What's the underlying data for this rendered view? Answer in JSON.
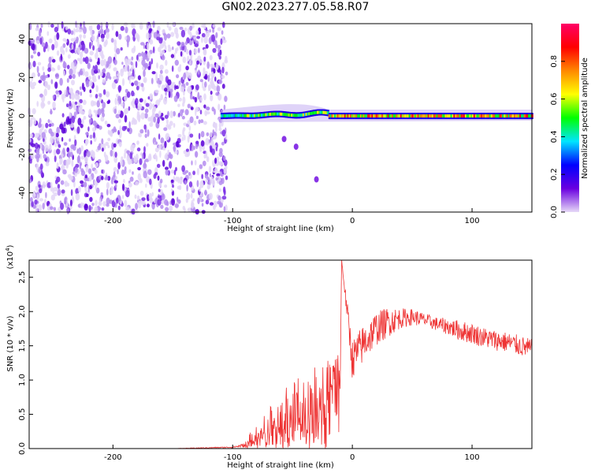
{
  "title": "GN02.2023.277.05.58.R07",
  "chart_data": [
    {
      "type": "heatmap",
      "xlabel": "Height of straight line (km)",
      "ylabel": "Frequency (Hz)",
      "xlim": [
        -270,
        150
      ],
      "ylim": [
        -50,
        48
      ],
      "xticks": [
        -200,
        -100,
        0,
        100
      ],
      "yticks": [
        -40,
        -20,
        0,
        20,
        40
      ],
      "colorbar": {
        "label": "Normalized spectral amplitude",
        "range": [
          0,
          1
        ],
        "ticks": [
          "0.0",
          "0.2",
          "0.4",
          "0.6",
          "0.8"
        ],
        "ticks_values": [
          0,
          0.2,
          0.4,
          0.6,
          0.8
        ],
        "colors": [
          "#e6d9f7",
          "#6a00e0",
          "#0000ff",
          "#00e5ff",
          "#00ff00",
          "#ffff00",
          "#ff8800",
          "#ff0000",
          "#ff0066"
        ]
      },
      "regions": [
        {
          "label": "noise",
          "x": [
            -270,
            -105
          ],
          "freq": [
            -50,
            48
          ],
          "amplitude": [
            0.0,
            0.1
          ]
        },
        {
          "label": "signal",
          "x": [
            -110,
            150
          ],
          "freq_center": 0,
          "amplitude": [
            0.2,
            1.0
          ]
        }
      ]
    },
    {
      "type": "line",
      "xlabel": "Height of straight line (km)",
      "ylabel": "SNR (10 * v/v)",
      "y_multiplier_label": "(x10",
      "y_multiplier_exp": "4",
      "y_multiplier_close": ")",
      "xlim": [
        -270,
        150
      ],
      "ylim": [
        0,
        2.75
      ],
      "xticks": [
        -200,
        -100,
        0,
        100
      ],
      "yticks": [
        "0.0",
        "0.5",
        "1.0",
        "1.5",
        "2.0",
        "2.5"
      ],
      "ytick_values": [
        0,
        0.5,
        1.0,
        1.5,
        2.0,
        2.5
      ],
      "line_color": "#ee3333",
      "series": [
        {
          "x": [
            -270,
            -150,
            -100,
            -90,
            -80,
            -70,
            -60,
            -50,
            -40,
            -30,
            -20,
            -10,
            -9,
            0,
            10,
            20,
            30,
            40,
            50,
            60,
            70,
            80,
            90,
            100,
            110,
            120,
            130,
            140,
            150
          ],
          "y": [
            0.0,
            0.0,
            0.02,
            0.05,
            0.22,
            0.3,
            0.4,
            0.5,
            0.6,
            0.75,
            0.95,
            1.15,
            2.75,
            1.3,
            1.55,
            1.75,
            1.85,
            1.9,
            1.92,
            1.88,
            1.82,
            1.78,
            1.72,
            1.68,
            1.62,
            1.58,
            1.55,
            1.5,
            1.45
          ],
          "noise": [
            0.0,
            0.0,
            0.01,
            0.03,
            0.18,
            0.3,
            0.4,
            0.5,
            0.5,
            0.45,
            0.35,
            0.3,
            0.0,
            0.3,
            0.28,
            0.25,
            0.22,
            0.15,
            0.12,
            0.1,
            0.1,
            0.12,
            0.15,
            0.15,
            0.15,
            0.15,
            0.15,
            0.15,
            0.15
          ]
        }
      ]
    }
  ]
}
